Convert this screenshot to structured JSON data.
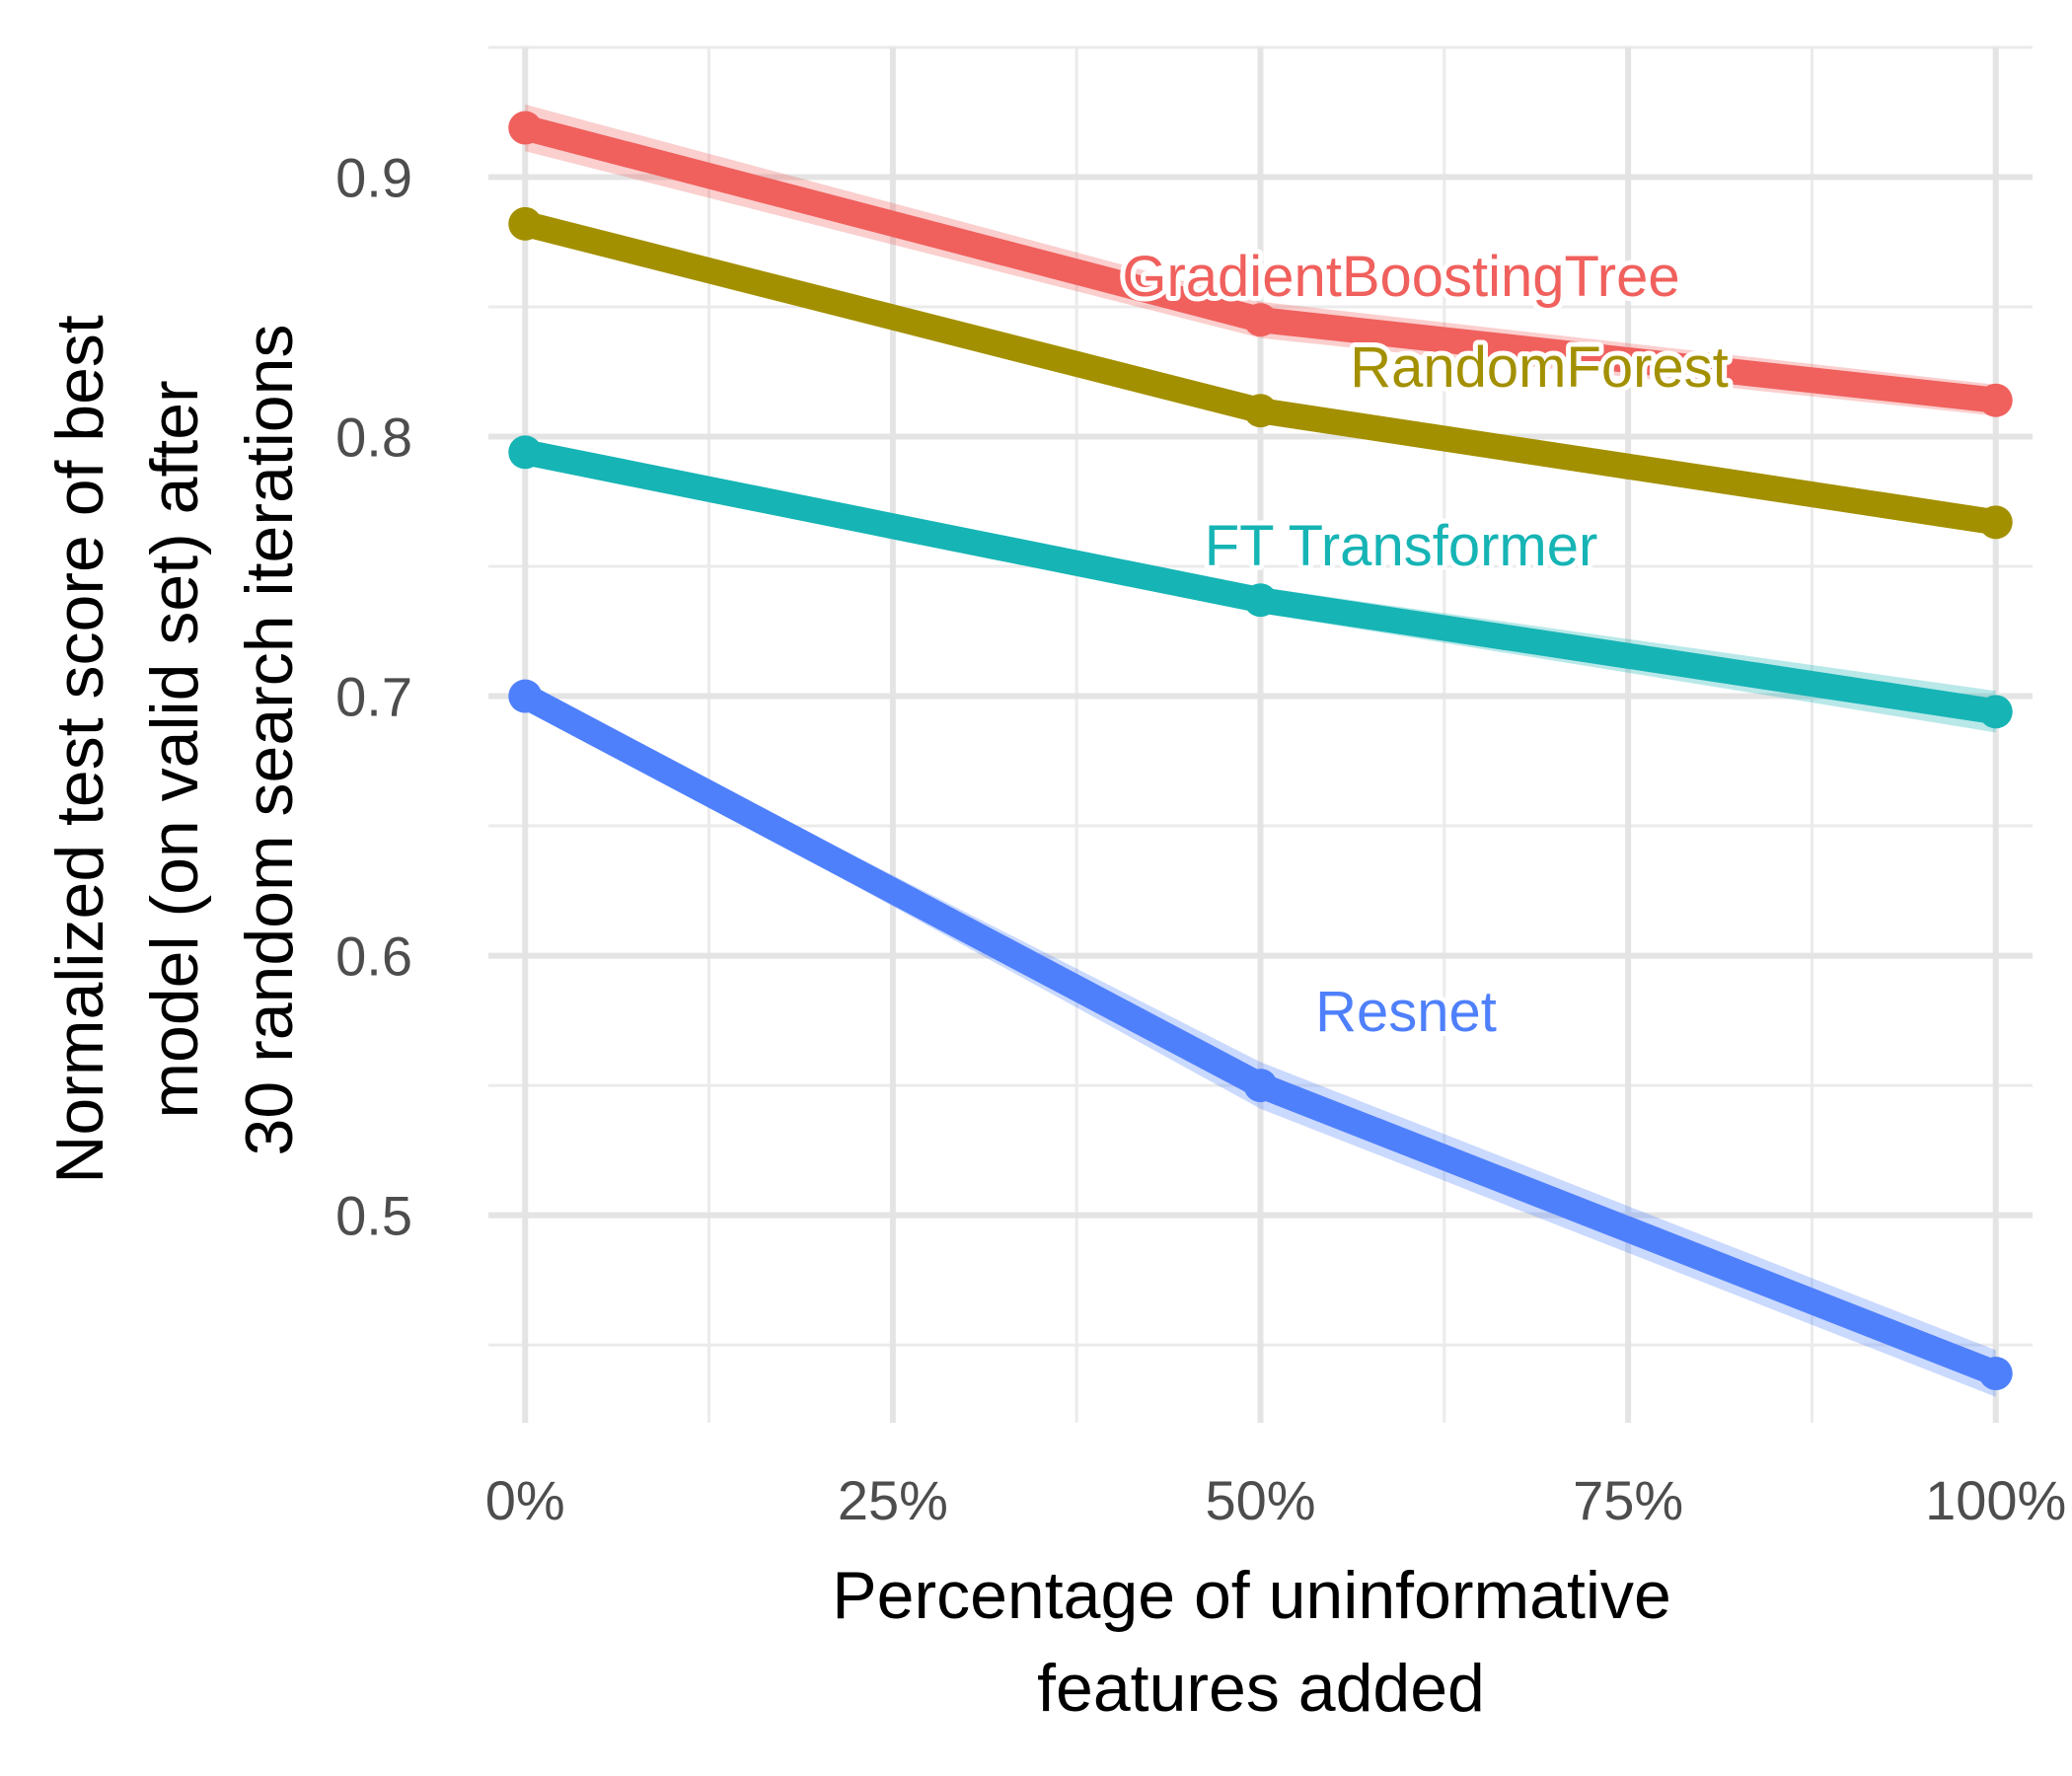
{
  "chart_data": {
    "type": "line",
    "title": "",
    "x": [
      0,
      50,
      100
    ],
    "xlim": [
      -2.5,
      102.5
    ],
    "xticks": [
      0,
      25,
      50,
      75,
      100
    ],
    "xtick_labels": [
      "0%",
      "25%",
      "50%",
      "75%",
      "100%"
    ],
    "xlabel": [
      "Percentage of uninformative",
      "features added"
    ],
    "ylim": [
      0.42,
      0.95
    ],
    "yticks": [
      0.5,
      0.6,
      0.7,
      0.8,
      0.9
    ],
    "ytick_labels": [
      "0.5",
      "0.6",
      "0.7",
      "0.8",
      "0.9"
    ],
    "ylabel": [
      "Normalized test score of best",
      "model (on valid set) after",
      "30 random search iterations"
    ],
    "grid": true,
    "legend": "direct labels",
    "series": [
      {
        "name": "GradientBoostingTree",
        "color": "#F0605D",
        "values": [
          0.919,
          0.845,
          0.814
        ],
        "lower": [
          0.91,
          0.838,
          0.808
        ],
        "upper": [
          0.928,
          0.852,
          0.82
        ]
      },
      {
        "name": "RandomForest",
        "color": "#A39000",
        "values": [
          0.882,
          0.81,
          0.767
        ],
        "lower": [
          0.877,
          0.805,
          0.762
        ],
        "upper": [
          0.887,
          0.815,
          0.772
        ]
      },
      {
        "name": "FT Transformer",
        "color": "#16B4B5",
        "values": [
          0.794,
          0.737,
          0.694
        ],
        "lower": [
          0.79,
          0.732,
          0.686
        ],
        "upper": [
          0.798,
          0.742,
          0.702
        ]
      },
      {
        "name": "Resnet",
        "color": "#4F80FC",
        "values": [
          0.7,
          0.55,
          0.439
        ],
        "lower": [
          0.697,
          0.541,
          0.43
        ],
        "upper": [
          0.703,
          0.559,
          0.448
        ]
      }
    ]
  }
}
